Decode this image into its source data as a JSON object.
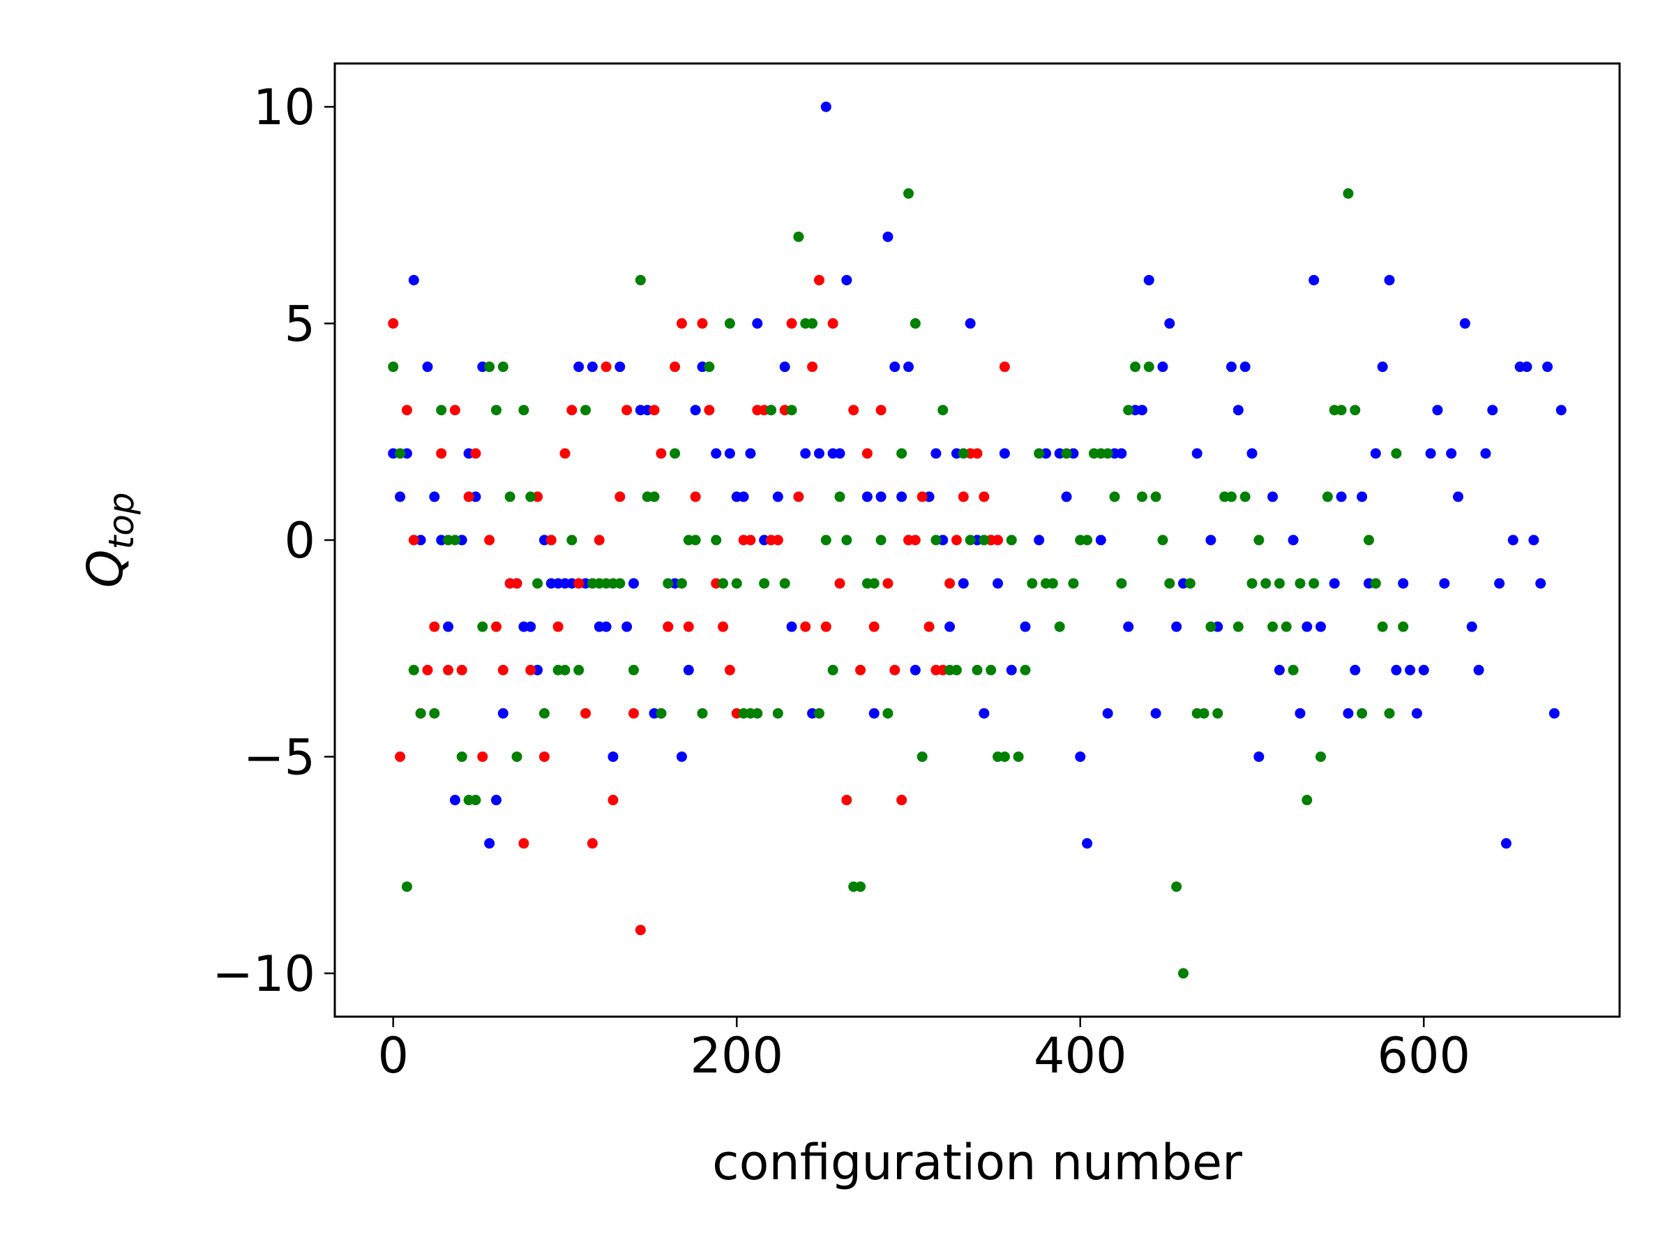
{
  "chart_data": {
    "type": "scatter",
    "xlabel": "configuration number",
    "ylabel": "Q",
    "ylabel_sub": "top",
    "xlim": [
      -34,
      714
    ],
    "ylim": [
      -11,
      11
    ],
    "xticks": [
      0,
      200,
      400,
      600
    ],
    "yticks": [
      {
        "value": -10,
        "label": "−10"
      },
      {
        "value": -5,
        "label": "−5"
      },
      0,
      5,
      10
    ],
    "series": [
      {
        "color": "#0000ff",
        "x": [
          0,
          4,
          8,
          12,
          16,
          20,
          24,
          28,
          32,
          36,
          40,
          44,
          48,
          52,
          56,
          60,
          64,
          68,
          72,
          76,
          80,
          84,
          88,
          92,
          96,
          100,
          104,
          108,
          112,
          116,
          120,
          124,
          128,
          132,
          136,
          140,
          144,
          148,
          152,
          156,
          160,
          164,
          168,
          172,
          176,
          180,
          188,
          196,
          200,
          204,
          208,
          212,
          216,
          220,
          224,
          228,
          232,
          240,
          244,
          248,
          252,
          256,
          260,
          264,
          276,
          280,
          284,
          288,
          292,
          296,
          300,
          304,
          312,
          316,
          320,
          324,
          328,
          332,
          336,
          340,
          344,
          348,
          352,
          356,
          360,
          368,
          376,
          380,
          388,
          392,
          396,
          400,
          404,
          412,
          416,
          420,
          424,
          428,
          432,
          436,
          440,
          444,
          448,
          452,
          456,
          460,
          468,
          476,
          480,
          488,
          492,
          496,
          500,
          504,
          512,
          516,
          524,
          528,
          532,
          536,
          540,
          548,
          552,
          556,
          560,
          564,
          568,
          572,
          576,
          580,
          584,
          588,
          592,
          596,
          600,
          604,
          608,
          612,
          616,
          620,
          624,
          628,
          632,
          636,
          640,
          644,
          648,
          652,
          656,
          660,
          664,
          668,
          672,
          676,
          680
        ],
        "values": [
          2,
          1,
          2,
          6,
          0,
          4,
          1,
          0,
          -2,
          -6,
          0,
          2,
          1,
          4,
          -7,
          -6,
          -4,
          -1,
          -1,
          -2,
          -2,
          -3,
          0,
          -1,
          -1,
          -1,
          -1,
          4,
          -1,
          4,
          -2,
          -2,
          -5,
          4,
          -2,
          -1,
          3,
          3,
          -4,
          -4,
          -2,
          -1,
          -5,
          -3,
          3,
          4,
          2,
          2,
          1,
          1,
          2,
          5,
          0,
          3,
          1,
          4,
          -2,
          2,
          -4,
          2,
          10,
          2,
          2,
          6,
          1,
          -4,
          1,
          7,
          4,
          1,
          4,
          -3,
          1,
          2,
          0,
          -2,
          2,
          -1,
          5,
          0,
          -4,
          0,
          -1,
          2,
          -3,
          -2,
          0,
          2,
          2,
          1,
          2,
          -5,
          -7,
          0,
          -4,
          2,
          2,
          -2,
          3,
          3,
          6,
          -4,
          4,
          5,
          -2,
          -1,
          2,
          0,
          -2,
          4,
          3,
          4,
          2,
          -5,
          1,
          -3,
          0,
          -4,
          -2,
          6,
          -2,
          -1,
          1,
          -4,
          -3,
          1,
          -1,
          2,
          4,
          6,
          -3,
          -1,
          -3,
          -4,
          -3,
          2,
          3,
          -1,
          2,
          1,
          5,
          -2,
          -3,
          2,
          3,
          -1,
          -7,
          0,
          4,
          4,
          0,
          -1,
          4,
          -4,
          3
        ]
      },
      {
        "color": "#ff0000",
        "x": [
          0,
          4,
          8,
          12,
          16,
          20,
          24,
          28,
          32,
          36,
          40,
          44,
          48,
          52,
          56,
          60,
          64,
          68,
          72,
          76,
          80,
          84,
          88,
          92,
          96,
          100,
          104,
          108,
          112,
          116,
          120,
          124,
          128,
          132,
          136,
          140,
          144,
          152,
          156,
          160,
          164,
          168,
          172,
          176,
          180,
          184,
          188,
          192,
          196,
          200,
          204,
          208,
          212,
          216,
          220,
          224,
          228,
          232,
          236,
          240,
          244,
          248,
          252,
          256,
          260,
          264,
          268,
          272,
          276,
          280,
          284,
          288,
          292,
          296,
          300,
          304,
          308,
          312,
          316,
          320,
          324,
          328,
          332,
          336,
          340,
          344,
          348,
          352,
          356
        ],
        "values": [
          5,
          -5,
          3,
          0,
          -4,
          -3,
          -2,
          2,
          -3,
          3,
          -3,
          1,
          2,
          -5,
          0,
          -2,
          -3,
          -1,
          -1,
          -7,
          -3,
          1,
          -5,
          0,
          -2,
          2,
          3,
          -1,
          -4,
          -7,
          0,
          4,
          -6,
          1,
          3,
          -4,
          -9,
          3,
          2,
          -2,
          4,
          5,
          -2,
          1,
          5,
          3,
          -1,
          -2,
          -3,
          -4,
          0,
          0,
          3,
          3,
          0,
          0,
          3,
          5,
          1,
          -2,
          4,
          6,
          -2,
          5,
          -1,
          -6,
          3,
          -3,
          2,
          -2,
          3,
          -1,
          -3,
          -6,
          0,
          0,
          1,
          -2,
          -3,
          -3,
          -1,
          0,
          1,
          2,
          2,
          1,
          0,
          0,
          4
        ]
      },
      {
        "color": "#008000",
        "x": [
          0,
          4,
          8,
          12,
          16,
          24,
          28,
          32,
          36,
          40,
          44,
          48,
          52,
          56,
          60,
          64,
          68,
          72,
          76,
          80,
          84,
          88,
          96,
          100,
          104,
          108,
          112,
          116,
          120,
          124,
          128,
          132,
          140,
          144,
          148,
          152,
          156,
          160,
          164,
          168,
          172,
          176,
          180,
          184,
          188,
          192,
          196,
          200,
          204,
          208,
          212,
          216,
          220,
          224,
          228,
          232,
          236,
          240,
          244,
          248,
          252,
          256,
          260,
          264,
          268,
          272,
          276,
          280,
          284,
          288,
          296,
          300,
          304,
          308,
          316,
          320,
          324,
          328,
          332,
          336,
          340,
          344,
          348,
          352,
          356,
          360,
          364,
          368,
          372,
          376,
          380,
          384,
          388,
          392,
          396,
          400,
          404,
          408,
          412,
          416,
          420,
          424,
          428,
          432,
          436,
          440,
          444,
          448,
          452,
          456,
          460,
          464,
          468,
          472,
          476,
          480,
          484,
          488,
          492,
          496,
          500,
          504,
          508,
          512,
          516,
          520,
          524,
          528,
          532,
          536,
          540,
          544,
          548,
          552,
          556,
          560,
          564,
          568,
          572,
          576,
          580,
          584,
          588
        ],
        "values": [
          4,
          2,
          -8,
          -3,
          -4,
          -4,
          3,
          0,
          0,
          -5,
          -6,
          -6,
          -2,
          4,
          3,
          4,
          1,
          -5,
          3,
          1,
          -1,
          -4,
          -3,
          -3,
          0,
          -3,
          3,
          -1,
          -1,
          -1,
          -1,
          -1,
          -3,
          6,
          1,
          1,
          -4,
          -1,
          2,
          -1,
          0,
          0,
          -4,
          4,
          0,
          -1,
          5,
          -1,
          -4,
          -4,
          -4,
          -1,
          3,
          -4,
          -1,
          3,
          7,
          5,
          5,
          -4,
          0,
          -3,
          1,
          0,
          -8,
          -8,
          -1,
          -1,
          0,
          -4,
          2,
          8,
          5,
          -5,
          0,
          3,
          -3,
          -3,
          2,
          0,
          -3,
          0,
          -3,
          -5,
          -5,
          0,
          -5,
          -3,
          -1,
          2,
          -1,
          -1,
          -2,
          2,
          -1,
          0,
          0,
          2,
          2,
          2,
          1,
          -1,
          3,
          4,
          1,
          4,
          1,
          0,
          -1,
          -8,
          -10,
          -1,
          -4,
          -4,
          -2,
          -4,
          1,
          1,
          -2,
          1,
          -1,
          0,
          -1,
          -2,
          -1,
          -2,
          -3,
          -1,
          -6,
          -1,
          -5,
          1,
          3,
          3,
          8,
          3,
          -4,
          0,
          -1,
          -2,
          -4,
          2,
          -2
        ]
      }
    ]
  }
}
